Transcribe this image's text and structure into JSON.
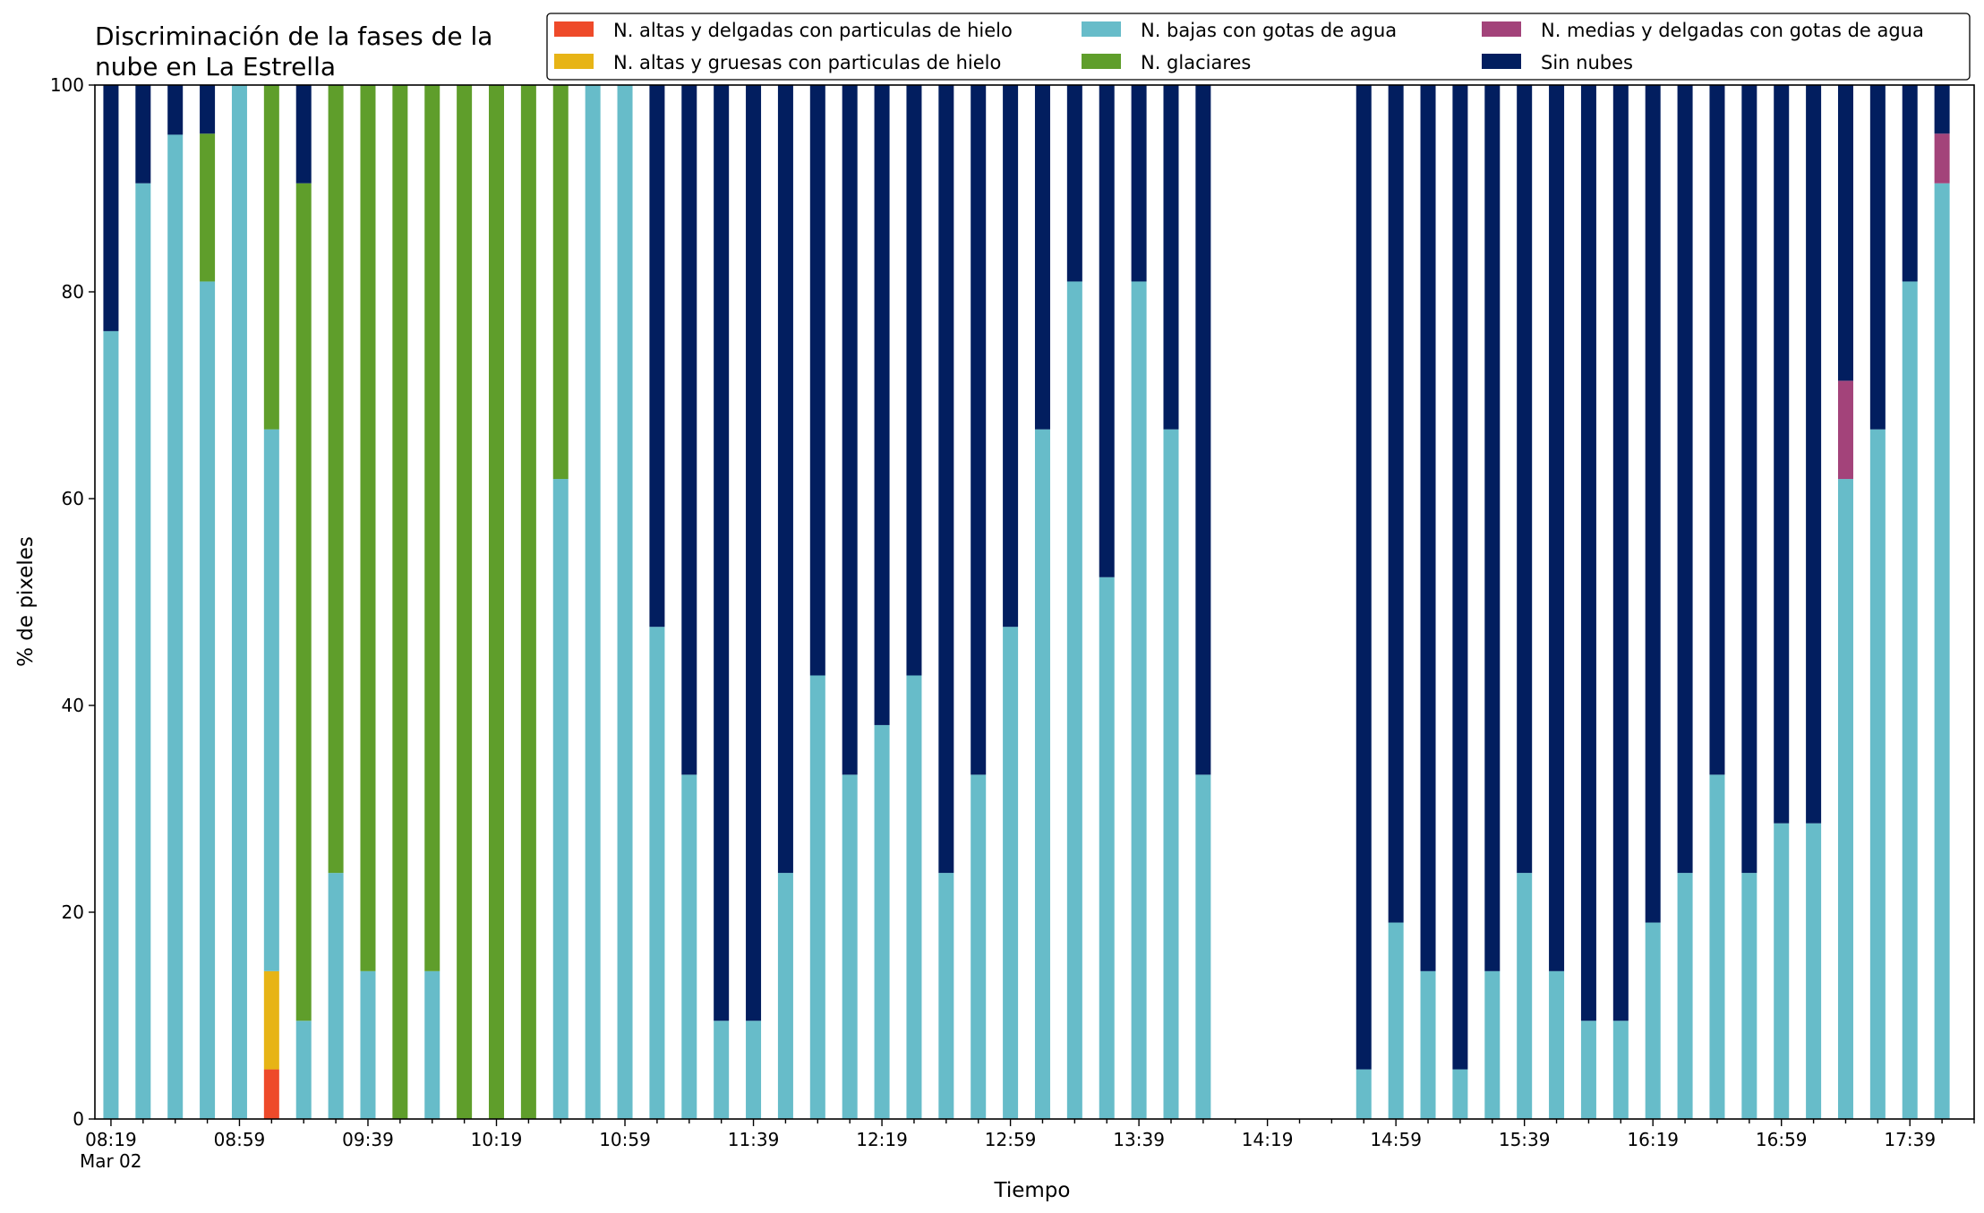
{
  "chart_data": {
    "type": "bar",
    "stacked": true,
    "title": [
      "Discriminación de la fases de la",
      "nube en La Estrella"
    ],
    "xlabel": "Tiempo",
    "ylabel": "% de pixeles",
    "ylim": [
      0,
      100
    ],
    "yticks": [
      0,
      20,
      40,
      60,
      80,
      100
    ],
    "xlim": [
      "08:14",
      "17:59"
    ],
    "x_tick_labels": [
      "08:19",
      "08:59",
      "09:39",
      "10:19",
      "10:59",
      "11:39",
      "12:19",
      "12:59",
      "13:39",
      "14:19",
      "14:59",
      "15:39",
      "16:19",
      "16:59",
      "17:39"
    ],
    "x_date_label": "Mar 02",
    "grid": false,
    "legend_position": "top-right",
    "colors": {
      "altas_delgadas": "#ee4a2a",
      "altas_gruesas": "#e7b416",
      "bajas": "#67bcc9",
      "glaciares": "#5f9e2b",
      "medias": "#a3437a",
      "sin_nubes": "#021e5f"
    },
    "legend": [
      {
        "key": "altas_delgadas",
        "label": "N. altas y delgadas con particulas de hielo"
      },
      {
        "key": "altas_gruesas",
        "label": "N. altas y gruesas con particulas de hielo"
      },
      {
        "key": "bajas",
        "label": "N. bajas con gotas de agua"
      },
      {
        "key": "glaciares",
        "label": "N. glaciares"
      },
      {
        "key": "medias",
        "label": "N. medias y delgadas con gotas de agua"
      },
      {
        "key": "sin_nubes",
        "label": "Sin nubes"
      }
    ],
    "series_order": [
      "altas_delgadas",
      "altas_gruesas",
      "bajas",
      "glaciares",
      "medias",
      "sin_nubes"
    ],
    "x": [
      "08:19",
      "08:29",
      "08:39",
      "08:49",
      "08:59",
      "09:09",
      "09:19",
      "09:29",
      "09:39",
      "09:49",
      "09:59",
      "10:09",
      "10:19",
      "10:29",
      "10:39",
      "10:49",
      "10:59",
      "11:09",
      "11:19",
      "11:29",
      "11:39",
      "11:49",
      "11:59",
      "12:09",
      "12:19",
      "12:29",
      "12:39",
      "12:49",
      "12:59",
      "13:09",
      "13:19",
      "13:29",
      "13:39",
      "13:49",
      "13:59",
      "14:09",
      "14:19",
      "14:29",
      "14:39",
      "14:49",
      "14:59",
      "15:09",
      "15:19",
      "15:29",
      "15:39",
      "15:49",
      "15:59",
      "16:09",
      "16:19",
      "16:29",
      "16:39",
      "16:49",
      "16:59",
      "17:09",
      "17:19",
      "17:29",
      "17:39",
      "17:49"
    ],
    "series": {
      "altas_delgadas": [
        0,
        0,
        0,
        0,
        0,
        4.8,
        0,
        0,
        0,
        0,
        0,
        0,
        0,
        0,
        0,
        0,
        0,
        0,
        0,
        0,
        0,
        0,
        0,
        0,
        0,
        0,
        0,
        0,
        0,
        0,
        0,
        0,
        0,
        0,
        0,
        0,
        0,
        0,
        0,
        0,
        0,
        0,
        0,
        0,
        0,
        0,
        0,
        0,
        0,
        0,
        0,
        0,
        0,
        0,
        0,
        0,
        0,
        0
      ],
      "altas_gruesas": [
        0,
        0,
        0,
        0,
        0,
        9.5,
        0,
        0,
        0,
        0,
        0,
        0,
        0,
        0,
        0,
        0,
        0,
        0,
        0,
        0,
        0,
        0,
        0,
        0,
        0,
        0,
        0,
        0,
        0,
        0,
        0,
        0,
        0,
        0,
        0,
        0,
        0,
        0,
        0,
        0,
        0,
        0,
        0,
        0,
        0,
        0,
        0,
        0,
        0,
        0,
        0,
        0,
        0,
        0,
        0,
        0,
        0,
        0
      ],
      "bajas": [
        76.2,
        90.5,
        95.2,
        81.0,
        100,
        52.4,
        9.5,
        23.8,
        14.3,
        0,
        14.3,
        0,
        0,
        0,
        61.9,
        100,
        100,
        47.6,
        33.3,
        9.5,
        9.5,
        23.8,
        42.9,
        33.3,
        38.1,
        42.9,
        23.8,
        33.3,
        47.6,
        66.7,
        81.0,
        52.4,
        81.0,
        66.7,
        33.3,
        0,
        0,
        0,
        0,
        4.8,
        19.0,
        14.3,
        4.8,
        14.3,
        23.8,
        14.3,
        9.5,
        9.5,
        19.0,
        23.8,
        33.3,
        23.8,
        28.6,
        28.6,
        61.9,
        66.7,
        81.0,
        90.5
      ],
      "glaciares": [
        0,
        0,
        0,
        14.3,
        0,
        33.3,
        81.0,
        76.2,
        85.7,
        100,
        85.7,
        100,
        100,
        100,
        38.1,
        0,
        0,
        0,
        0,
        0,
        0,
        0,
        0,
        0,
        0,
        0,
        0,
        0,
        0,
        0,
        0,
        0,
        0,
        0,
        0,
        0,
        0,
        0,
        0,
        0,
        0,
        0,
        0,
        0,
        0,
        0,
        0,
        0,
        0,
        0,
        0,
        0,
        0,
        0,
        0,
        0,
        0,
        0
      ],
      "medias": [
        0,
        0,
        0,
        0,
        0,
        0,
        0,
        0,
        0,
        0,
        0,
        0,
        0,
        0,
        0,
        0,
        0,
        0,
        0,
        0,
        0,
        0,
        0,
        0,
        0,
        0,
        0,
        0,
        0,
        0,
        0,
        0,
        0,
        0,
        0,
        0,
        0,
        0,
        0,
        0,
        0,
        0,
        0,
        0,
        0,
        0,
        0,
        0,
        0,
        0,
        0,
        0,
        0,
        0,
        9.5,
        0,
        0,
        4.8
      ],
      "sin_nubes": [
        23.8,
        9.5,
        4.8,
        4.7,
        0,
        0,
        9.5,
        0,
        0,
        0,
        0,
        0,
        0,
        0,
        0,
        0,
        0,
        52.4,
        66.7,
        90.5,
        90.5,
        76.2,
        57.1,
        66.7,
        61.9,
        57.1,
        76.2,
        66.7,
        52.4,
        33.3,
        19.0,
        47.6,
        19.0,
        33.3,
        66.7,
        0,
        0,
        0,
        0,
        95.2,
        81.0,
        85.7,
        95.2,
        85.7,
        76.2,
        85.7,
        90.5,
        90.5,
        81.0,
        76.2,
        66.7,
        76.2,
        71.4,
        71.4,
        28.6,
        33.3,
        19.0,
        4.7
      ]
    }
  }
}
